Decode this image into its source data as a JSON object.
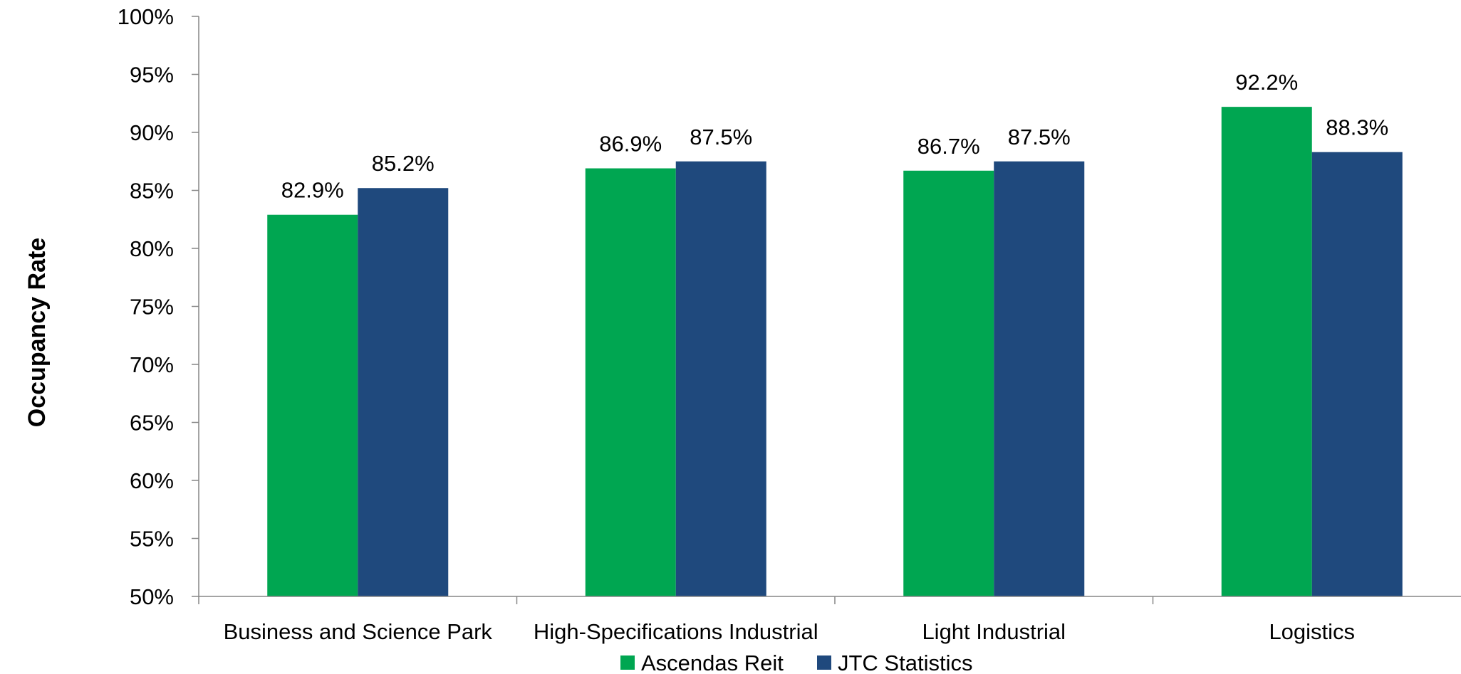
{
  "chart_data": {
    "type": "bar",
    "ylabel": "Occupancy Rate",
    "xlabel": "",
    "ylim": [
      50,
      100
    ],
    "ytick_step": 5,
    "ytick_labels": [
      "50%",
      "55%",
      "60%",
      "65%",
      "70%",
      "75%",
      "80%",
      "85%",
      "90%",
      "95%",
      "100%"
    ],
    "categories": [
      "Business and Science Park",
      "High-Specifications Industrial",
      "Light Industrial",
      "Logistics"
    ],
    "series": [
      {
        "name": "Ascendas Reit",
        "color": "#00A651",
        "values": [
          82.9,
          86.9,
          86.7,
          92.2
        ],
        "labels": [
          "82.9%",
          "86.9%",
          "86.7%",
          "92.2%"
        ]
      },
      {
        "name": "JTC Statistics",
        "color": "#1F497D",
        "values": [
          85.2,
          87.5,
          87.5,
          88.3
        ],
        "labels": [
          "85.2%",
          "87.5%",
          "87.5%",
          "88.3%"
        ]
      }
    ],
    "grid": false,
    "legend_position": "bottom-center"
  }
}
